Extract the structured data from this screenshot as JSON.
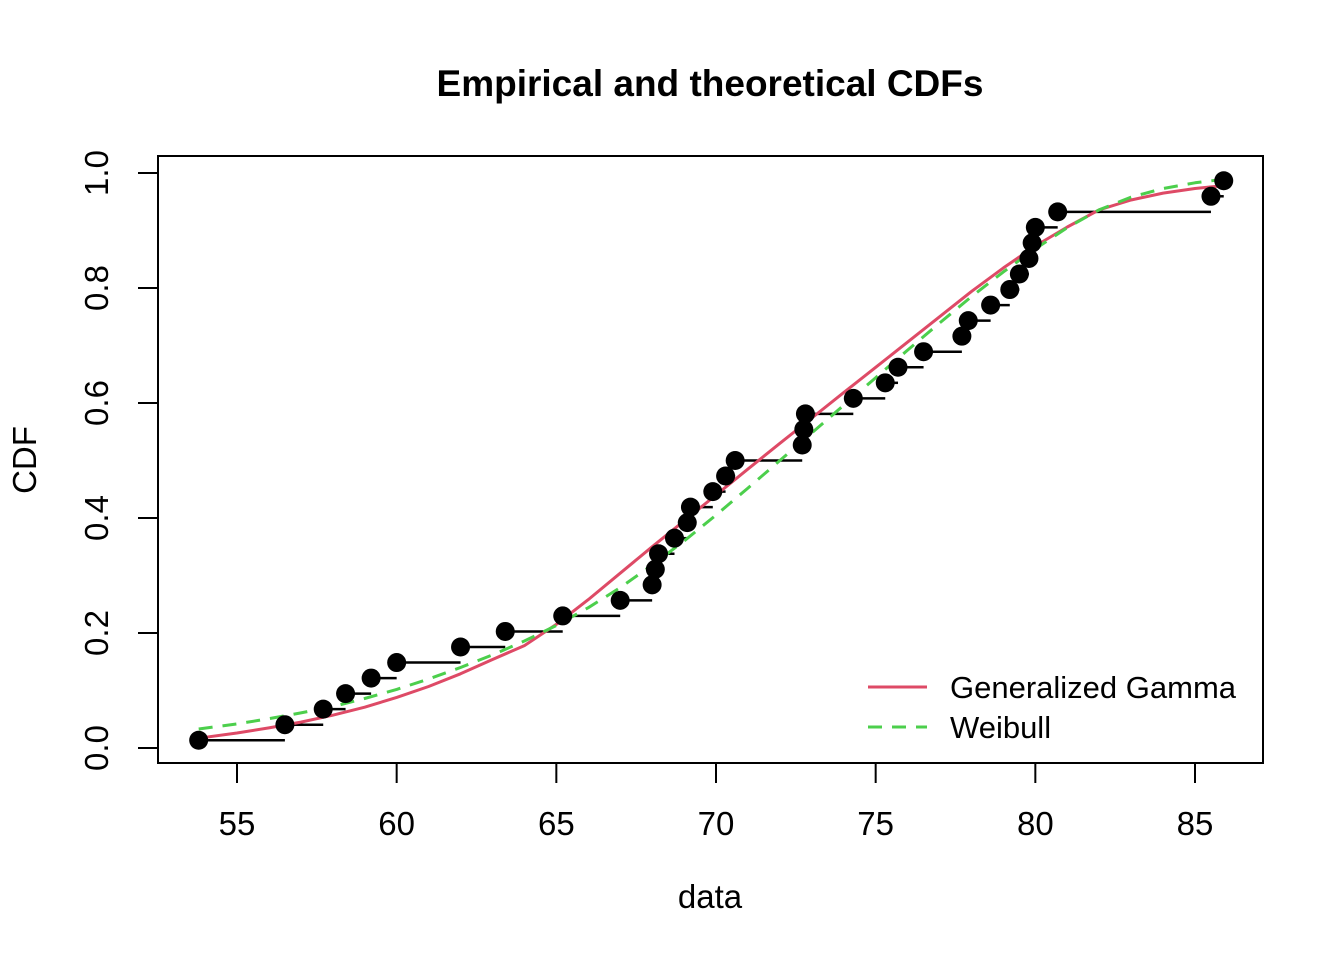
{
  "chart_data": {
    "type": "line",
    "title": "Empirical and theoretical CDFs",
    "xlabel": "data",
    "ylabel": "CDF",
    "grid": false,
    "x_axis": {
      "min": 52.5,
      "max": 87.1,
      "tick_values": [
        55,
        60,
        65,
        70,
        75,
        80,
        85
      ],
      "tick_labels": [
        "55",
        "60",
        "65",
        "70",
        "75",
        "80",
        "85"
      ]
    },
    "y_axis": {
      "min": -0.026,
      "max": 1.03,
      "tick_values": [
        0.0,
        0.2,
        0.4,
        0.6,
        0.8,
        1.0
      ],
      "tick_labels": [
        "0.0",
        "0.2",
        "0.4",
        "0.6",
        "0.8",
        "1.0"
      ]
    },
    "legend": {
      "position": "right-lower",
      "entries": [
        {
          "label": "Generalized Gamma",
          "style": "solid",
          "color": "#DE4A66"
        },
        {
          "label": "Weibull",
          "style": "dashed",
          "color": "#4CCF4C"
        }
      ]
    },
    "empirical": {
      "name": "Empirical CDF",
      "marker": "filled-circle",
      "color": "#000000",
      "n": 37,
      "plotting_position": "(i-0.5)/37",
      "points": [
        [
          53.8,
          0.0135
        ],
        [
          56.5,
          0.0405
        ],
        [
          57.7,
          0.0676
        ],
        [
          58.4,
          0.0946
        ],
        [
          59.2,
          0.1216
        ],
        [
          60.0,
          0.1486
        ],
        [
          62.0,
          0.1757
        ],
        [
          63.4,
          0.2027
        ],
        [
          65.2,
          0.2297
        ],
        [
          67.0,
          0.2568
        ],
        [
          68.0,
          0.2838
        ],
        [
          68.1,
          0.3108
        ],
        [
          68.2,
          0.3378
        ],
        [
          68.7,
          0.3649
        ],
        [
          69.1,
          0.3919
        ],
        [
          69.2,
          0.4189
        ],
        [
          69.9,
          0.4459
        ],
        [
          70.3,
          0.473
        ],
        [
          70.6,
          0.5
        ],
        [
          72.7,
          0.527
        ],
        [
          72.75,
          0.5541
        ],
        [
          72.8,
          0.5811
        ],
        [
          74.3,
          0.6081
        ],
        [
          75.3,
          0.6351
        ],
        [
          75.7,
          0.6622
        ],
        [
          76.5,
          0.6892
        ],
        [
          77.7,
          0.7162
        ],
        [
          77.9,
          0.7432
        ],
        [
          78.6,
          0.7703
        ],
        [
          79.2,
          0.7973
        ],
        [
          79.5,
          0.8243
        ],
        [
          79.8,
          0.8514
        ],
        [
          79.9,
          0.8784
        ],
        [
          80.0,
          0.9054
        ],
        [
          80.7,
          0.9324
        ],
        [
          85.5,
          0.9595
        ],
        [
          85.9,
          0.9865
        ]
      ]
    },
    "series": [
      {
        "name": "Generalized Gamma",
        "color": "#DE4A66",
        "dash": "solid",
        "points": [
          [
            53.8,
            0.017
          ],
          [
            55,
            0.026
          ],
          [
            56,
            0.035
          ],
          [
            57,
            0.045
          ],
          [
            58,
            0.057
          ],
          [
            59,
            0.071
          ],
          [
            60,
            0.088
          ],
          [
            61,
            0.107
          ],
          [
            62,
            0.129
          ],
          [
            63,
            0.154
          ],
          [
            64,
            0.178
          ],
          [
            65,
            0.215
          ],
          [
            66,
            0.258
          ],
          [
            67,
            0.304
          ],
          [
            68,
            0.35
          ],
          [
            69,
            0.395
          ],
          [
            70,
            0.44
          ],
          [
            71,
            0.485
          ],
          [
            72,
            0.53
          ],
          [
            73,
            0.574
          ],
          [
            74,
            0.618
          ],
          [
            75,
            0.662
          ],
          [
            76,
            0.706
          ],
          [
            77,
            0.75
          ],
          [
            78,
            0.794
          ],
          [
            79,
            0.835
          ],
          [
            80,
            0.873
          ],
          [
            81,
            0.906
          ],
          [
            82,
            0.936
          ],
          [
            83,
            0.953
          ],
          [
            84,
            0.965
          ],
          [
            85,
            0.973
          ],
          [
            85.9,
            0.978
          ]
        ]
      },
      {
        "name": "Weibull",
        "color": "#4CCF4C",
        "dash": "dashed",
        "points": [
          [
            53.8,
            0.033
          ],
          [
            55,
            0.042
          ],
          [
            56,
            0.051
          ],
          [
            57,
            0.061
          ],
          [
            58,
            0.072
          ],
          [
            59,
            0.086
          ],
          [
            60,
            0.102
          ],
          [
            61,
            0.12
          ],
          [
            62,
            0.14
          ],
          [
            63,
            0.162
          ],
          [
            64,
            0.186
          ],
          [
            65,
            0.213
          ],
          [
            66,
            0.244
          ],
          [
            67,
            0.279
          ],
          [
            68,
            0.318
          ],
          [
            69,
            0.36
          ],
          [
            70,
            0.405
          ],
          [
            71,
            0.452
          ],
          [
            72,
            0.5
          ],
          [
            73,
            0.548
          ],
          [
            74,
            0.596
          ],
          [
            75,
            0.644
          ],
          [
            76,
            0.692
          ],
          [
            77,
            0.739
          ],
          [
            78,
            0.785
          ],
          [
            79,
            0.828
          ],
          [
            80,
            0.868
          ],
          [
            81,
            0.905
          ],
          [
            82,
            0.936
          ],
          [
            83,
            0.958
          ],
          [
            84,
            0.973
          ],
          [
            85,
            0.983
          ],
          [
            85.9,
            0.989
          ]
        ]
      }
    ]
  }
}
